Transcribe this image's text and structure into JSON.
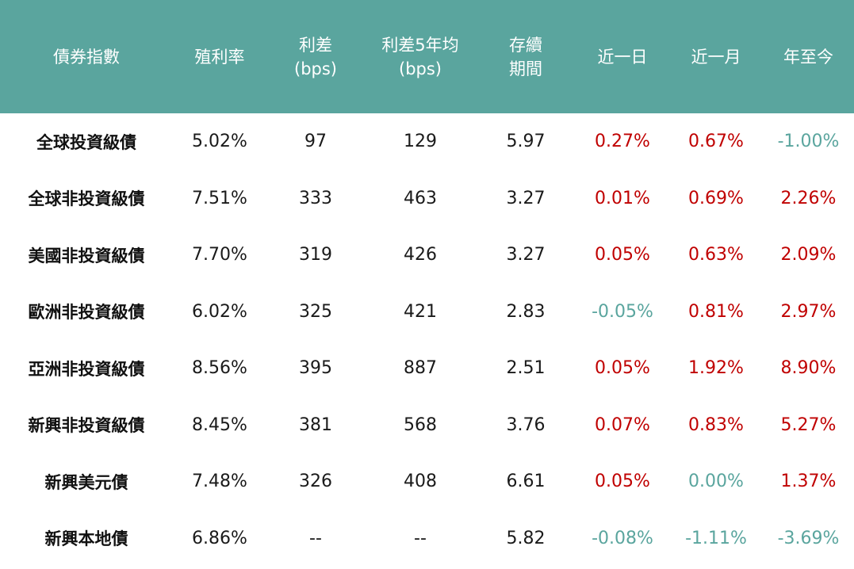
{
  "colors": {
    "header_bg": "#5aa59e",
    "header_text": "#ffffff",
    "positive": "#c00000",
    "negative": "#5aa59e",
    "neutral": "#1a1a1a"
  },
  "headers": [
    {
      "line1": "債券指數",
      "line2": ""
    },
    {
      "line1": "殖利率",
      "line2": ""
    },
    {
      "line1": "利差",
      "line2": "(bps)"
    },
    {
      "line1": "利差5年均",
      "line2": "(bps)"
    },
    {
      "line1": "存續",
      "line2": "期間"
    },
    {
      "line1": "近一日",
      "line2": ""
    },
    {
      "line1": "近一月",
      "line2": ""
    },
    {
      "line1": "年至今",
      "line2": ""
    }
  ],
  "rows": [
    {
      "name": "全球投資級債",
      "yield": "5.02%",
      "spread": "97",
      "spread_5y": "129",
      "duration": "5.97",
      "d1": "0.27%",
      "m1": "0.67%",
      "ytd": "-1.00%"
    },
    {
      "name": "全球非投資級債",
      "yield": "7.51%",
      "spread": "333",
      "spread_5y": "463",
      "duration": "3.27",
      "d1": "0.01%",
      "m1": "0.69%",
      "ytd": "2.26%"
    },
    {
      "name": "美國非投資級債",
      "yield": "7.70%",
      "spread": "319",
      "spread_5y": "426",
      "duration": "3.27",
      "d1": "0.05%",
      "m1": "0.63%",
      "ytd": "2.09%"
    },
    {
      "name": "歐洲非投資級債",
      "yield": "6.02%",
      "spread": "325",
      "spread_5y": "421",
      "duration": "2.83",
      "d1": "-0.05%",
      "m1": "0.81%",
      "ytd": "2.97%"
    },
    {
      "name": "亞洲非投資級債",
      "yield": "8.56%",
      "spread": "395",
      "spread_5y": "887",
      "duration": "2.51",
      "d1": "0.05%",
      "m1": "1.92%",
      "ytd": "8.90%"
    },
    {
      "name": "新興非投資級債",
      "yield": "8.45%",
      "spread": "381",
      "spread_5y": "568",
      "duration": "3.76",
      "d1": "0.07%",
      "m1": "0.83%",
      "ytd": "5.27%"
    },
    {
      "name": "新興美元債",
      "yield": "7.48%",
      "spread": "326",
      "spread_5y": "408",
      "duration": "6.61",
      "d1": "0.05%",
      "m1": "0.00%",
      "ytd": "1.37%"
    },
    {
      "name": "新興本地債",
      "yield": "6.86%",
      "spread": "--",
      "spread_5y": "--",
      "duration": "5.82",
      "d1": "-0.08%",
      "m1": "-1.11%",
      "ytd": "-3.69%"
    }
  ]
}
